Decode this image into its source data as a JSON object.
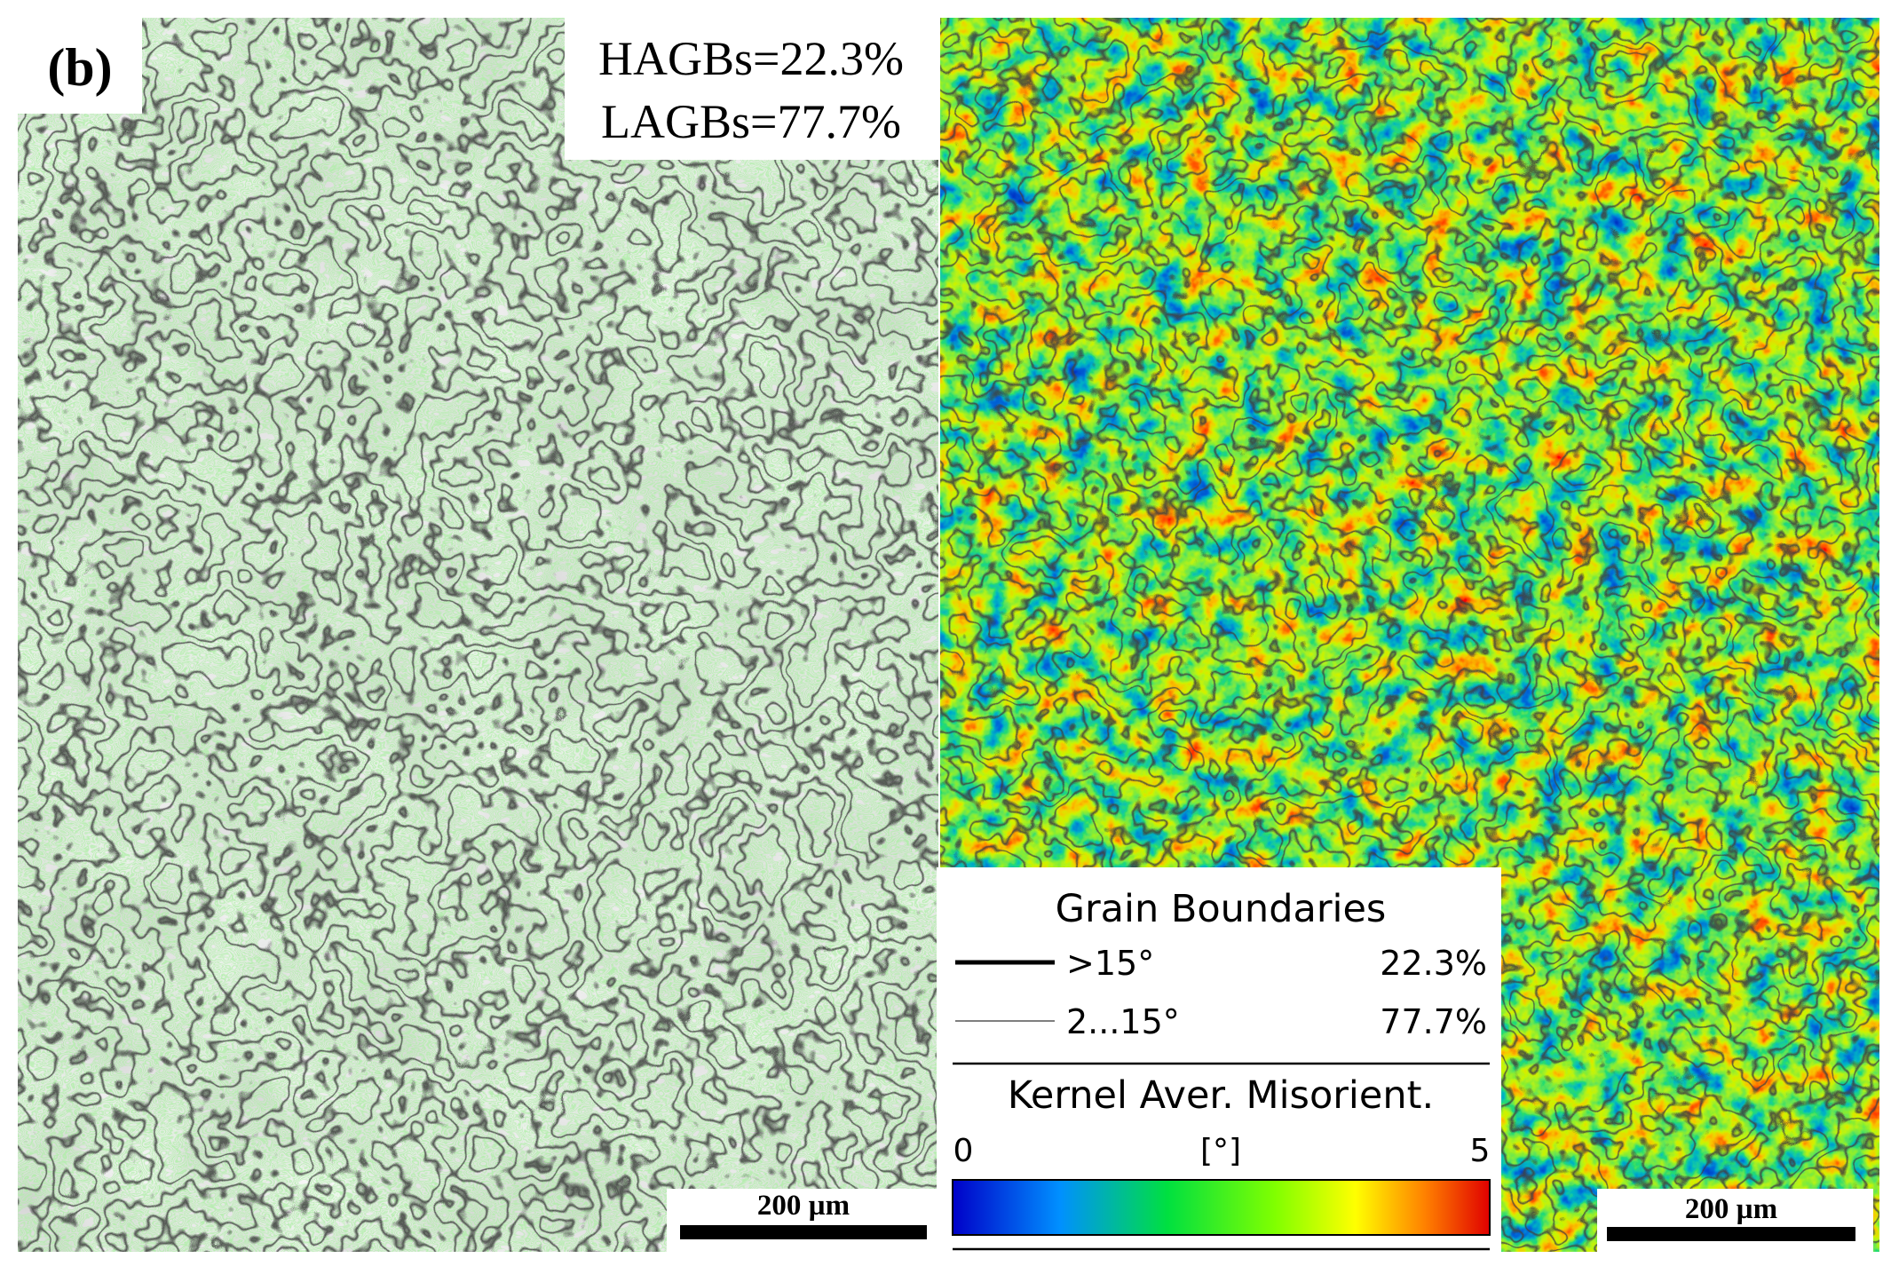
{
  "panel_label": "(b)",
  "stats": {
    "hagbs": "HAGBs=22.3%",
    "lagbs": "LAGBs=77.7%"
  },
  "legend": {
    "title": "Grain Boundaries",
    "rows": [
      {
        "range": ">15°",
        "fraction": "22.3%"
      },
      {
        "range": "2...15°",
        "fraction": "77.7%"
      }
    ],
    "colorbar": {
      "title": "Kernel Aver. Misorient.",
      "min": "0",
      "unit": "[°]",
      "max": "5"
    }
  },
  "scale_bars": [
    "200 µm",
    "200 µm"
  ]
}
